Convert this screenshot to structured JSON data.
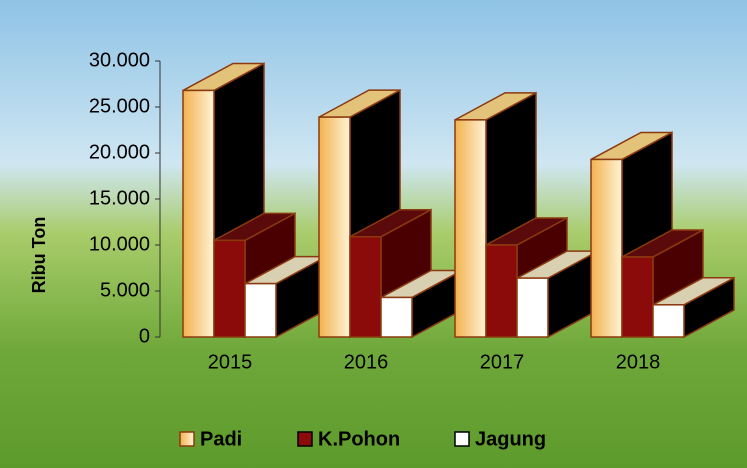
{
  "chart_data": {
    "type": "bar3d",
    "y_label": "Ribu Ton",
    "categories": [
      "2015",
      "2016",
      "2017",
      "2018"
    ],
    "series": [
      {
        "name": "Padi",
        "color": "#f6c46e",
        "values": [
          26800,
          23900,
          23600,
          19300
        ]
      },
      {
        "name": "K.Pohon",
        "color": "#8b0a0a",
        "values": [
          10500,
          10900,
          10000,
          8700
        ]
      },
      {
        "name": "Jagung",
        "color": "#ffffff",
        "values": [
          5800,
          4300,
          6400,
          3500
        ]
      }
    ],
    "ylim": [
      0,
      30000
    ],
    "yticks": [
      0,
      {
        "value": 5000,
        "label": "5.000"
      },
      {
        "value": 10000,
        "label": "10.000"
      },
      {
        "value": 15000,
        "label": "15.000"
      },
      {
        "value": 20000,
        "label": "20.000"
      },
      {
        "value": 25000,
        "label": "25.000"
      },
      {
        "value": 30000,
        "label": "30.000"
      }
    ]
  }
}
